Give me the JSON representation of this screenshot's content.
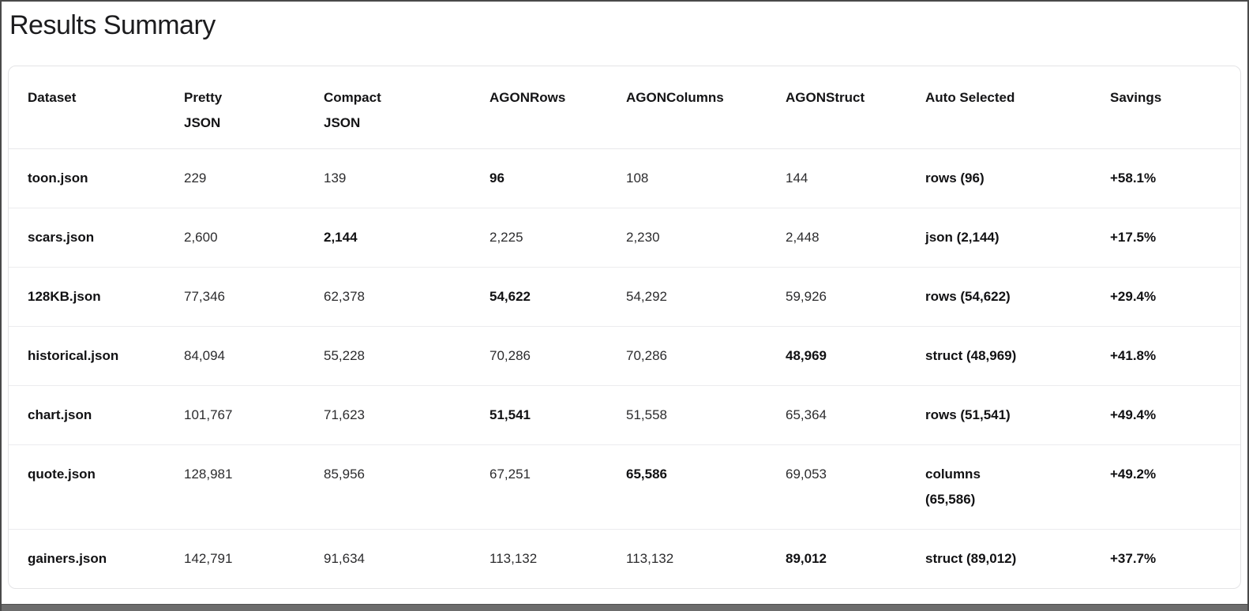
{
  "page": {
    "title": "Results Summary"
  },
  "table": {
    "columns": [
      {
        "label": "Dataset"
      },
      {
        "label": "Pretty\nJSON"
      },
      {
        "label": "Compact\nJSON"
      },
      {
        "label": "AGONRows"
      },
      {
        "label": "AGONColumns"
      },
      {
        "label": "AGONStruct"
      },
      {
        "label": "Auto Selected"
      },
      {
        "label": "Savings"
      }
    ],
    "rows": [
      {
        "cells": [
          {
            "text": "toon.json",
            "bold": true
          },
          {
            "text": "229",
            "bold": false
          },
          {
            "text": "139",
            "bold": false
          },
          {
            "text": "96",
            "bold": true
          },
          {
            "text": "108",
            "bold": false
          },
          {
            "text": "144",
            "bold": false
          },
          {
            "text": "rows (96)",
            "bold": true
          },
          {
            "text": "+58.1%",
            "bold": true
          }
        ]
      },
      {
        "cells": [
          {
            "text": "scars.json",
            "bold": true
          },
          {
            "text": "2,600",
            "bold": false
          },
          {
            "text": "2,144",
            "bold": true
          },
          {
            "text": "2,225",
            "bold": false
          },
          {
            "text": "2,230",
            "bold": false
          },
          {
            "text": "2,448",
            "bold": false
          },
          {
            "text": "json (2,144)",
            "bold": true
          },
          {
            "text": "+17.5%",
            "bold": true
          }
        ]
      },
      {
        "cells": [
          {
            "text": "128KB.json",
            "bold": true
          },
          {
            "text": "77,346",
            "bold": false
          },
          {
            "text": "62,378",
            "bold": false
          },
          {
            "text": "54,622",
            "bold": true
          },
          {
            "text": "54,292",
            "bold": false
          },
          {
            "text": "59,926",
            "bold": false
          },
          {
            "text": "rows (54,622)",
            "bold": true
          },
          {
            "text": "+29.4%",
            "bold": true
          }
        ]
      },
      {
        "cells": [
          {
            "text": "historical.json",
            "bold": true
          },
          {
            "text": "84,094",
            "bold": false
          },
          {
            "text": "55,228",
            "bold": false
          },
          {
            "text": "70,286",
            "bold": false
          },
          {
            "text": "70,286",
            "bold": false
          },
          {
            "text": "48,969",
            "bold": true
          },
          {
            "text": "struct (48,969)",
            "bold": true
          },
          {
            "text": "+41.8%",
            "bold": true
          }
        ]
      },
      {
        "cells": [
          {
            "text": "chart.json",
            "bold": true
          },
          {
            "text": "101,767",
            "bold": false
          },
          {
            "text": "71,623",
            "bold": false
          },
          {
            "text": "51,541",
            "bold": true
          },
          {
            "text": "51,558",
            "bold": false
          },
          {
            "text": "65,364",
            "bold": false
          },
          {
            "text": "rows (51,541)",
            "bold": true
          },
          {
            "text": "+49.4%",
            "bold": true
          }
        ]
      },
      {
        "cells": [
          {
            "text": "quote.json",
            "bold": true
          },
          {
            "text": "128,981",
            "bold": false
          },
          {
            "text": "85,956",
            "bold": false
          },
          {
            "text": "67,251",
            "bold": false
          },
          {
            "text": "65,586",
            "bold": true
          },
          {
            "text": "69,053",
            "bold": false
          },
          {
            "text": "columns\n(65,586)",
            "bold": true
          },
          {
            "text": "+49.2%",
            "bold": true
          }
        ]
      },
      {
        "cells": [
          {
            "text": "gainers.json",
            "bold": true
          },
          {
            "text": "142,791",
            "bold": false
          },
          {
            "text": "91,634",
            "bold": false
          },
          {
            "text": "113,132",
            "bold": false
          },
          {
            "text": "113,132",
            "bold": false
          },
          {
            "text": "89,012",
            "bold": true
          },
          {
            "text": "struct (89,012)",
            "bold": true
          },
          {
            "text": "+37.7%",
            "bold": true
          }
        ]
      }
    ]
  }
}
